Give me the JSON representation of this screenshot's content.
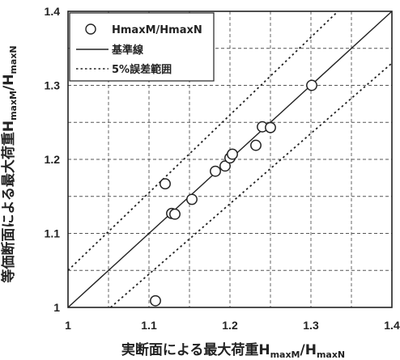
{
  "chart_data": {
    "type": "scatter",
    "xlim": [
      1.0,
      1.4
    ],
    "ylim": [
      1.0,
      1.4
    ],
    "x_ticks": [
      1,
      1.1,
      1.2,
      1.3,
      1.4
    ],
    "y_ticks": [
      1,
      1.1,
      1.2,
      1.3,
      1.4
    ],
    "x_tick_labels": [
      "1",
      "1.1",
      "1.2",
      "1.3",
      "1.4"
    ],
    "y_tick_labels": [
      "1",
      "1.1",
      "1.2",
      "1.3",
      "1.4"
    ],
    "grid": true,
    "grid_style": "dashed",
    "legend_placement": "top-left",
    "xlabel": {
      "prefix": "実断面による最大荷重H",
      "sub1": "maxM",
      "mid": "/H",
      "sub2": "maxN"
    },
    "ylabel": {
      "prefix": "等価断面による最大荷重H",
      "sub1": "maxM",
      "mid": "/H",
      "sub2": "maxN"
    },
    "legend": {
      "points_label": "HmaxM/HmaxN",
      "reference_label": "基準線",
      "band_label": "5%誤差範囲"
    },
    "reference_line": {
      "slope": 1.0,
      "intercept": 0.0
    },
    "error_band": {
      "factors": [
        1.05,
        0.95
      ]
    },
    "series": [
      {
        "name": "HmaxM/HmaxN",
        "marker": "open-circle",
        "points": [
          {
            "x": 1.108,
            "y": 1.009
          },
          {
            "x": 1.12,
            "y": 1.167
          },
          {
            "x": 1.128,
            "y": 1.127
          },
          {
            "x": 1.132,
            "y": 1.126
          },
          {
            "x": 1.153,
            "y": 1.146
          },
          {
            "x": 1.182,
            "y": 1.184
          },
          {
            "x": 1.194,
            "y": 1.191
          },
          {
            "x": 1.2,
            "y": 1.202
          },
          {
            "x": 1.203,
            "y": 1.207
          },
          {
            "x": 1.232,
            "y": 1.219
          },
          {
            "x": 1.24,
            "y": 1.244
          },
          {
            "x": 1.25,
            "y": 1.243
          },
          {
            "x": 1.301,
            "y": 1.3
          }
        ]
      }
    ]
  }
}
